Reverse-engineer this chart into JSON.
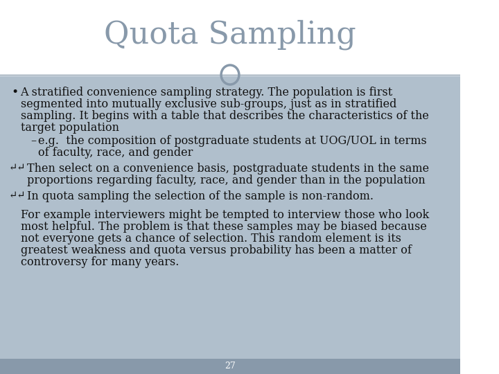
{
  "title": "Quota Sampling",
  "title_color": "#8899aa",
  "title_fontsize": 32,
  "bg_top": "#ffffff",
  "bg_bottom": "#a0b0c0",
  "separator_color": "#8899aa",
  "circle_color": "#8899aa",
  "text_color": "#111111",
  "footer_number": "27",
  "bullet1": "A stratified convenience sampling strategy. The population is first segmented into mutually exclusive sub-groups, just as in stratified sampling. It begins with a table that describes the characteristics of the target population",
  "sub_bullet": "e.g.  the composition of postgraduate students at UOG/UOL in terms of faculty, race, and gender",
  "bullet2": "Then select on a convenience basis, postgraduate students in the same proportions regarding faculty, race, and gender than in the population",
  "bullet3": "In quota sampling the selection of the sample is non-random.",
  "paragraph": "For example interviewers might be tempted to interview those who look most helpful. The problem is that these samples may be biased because not everyone gets a chance of selection. This random element is its greatest weakness and quota versus probability has been a matter of controversy for many years.",
  "font_family": "serif",
  "body_fontsize": 11.5,
  "body_bg": "#b0bfcc"
}
